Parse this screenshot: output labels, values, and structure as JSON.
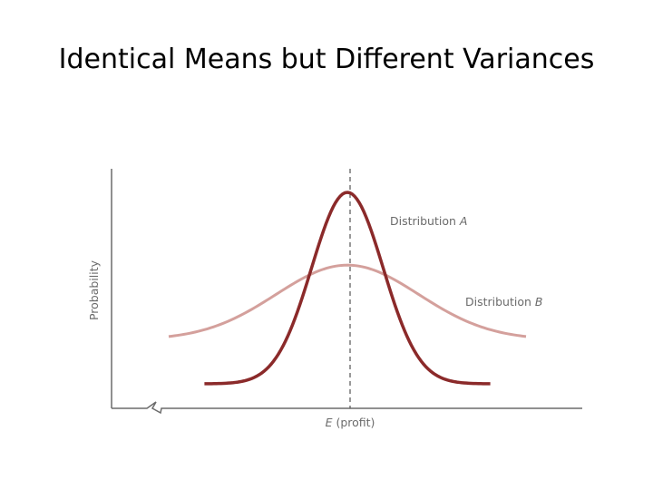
{
  "title": "Identical Means but Different Variances",
  "chart_data": {
    "type": "line",
    "ylabel": "Probability",
    "xlabel": {
      "symbol": "E",
      "rest": " (profit)"
    },
    "mean_line": "dashed",
    "grid": false,
    "axis_break_on_x": true,
    "x_range": [
      -3,
      3
    ],
    "y_range": [
      0,
      1
    ],
    "series": [
      {
        "label_prefix": "Distribution ",
        "label_letter": "A",
        "color": "#8b2a2a",
        "sigma": 0.6,
        "peak": 1.0,
        "baseline": 0.0
      },
      {
        "label_prefix": "Distribution ",
        "label_letter": "B",
        "color": "#d4a09c",
        "sigma": 1.2,
        "peak": 0.62,
        "baseline": 0.23
      }
    ]
  },
  "colors": {
    "axis": "#6b6b6b",
    "series_a": "#8b2a2a",
    "series_b": "#d4a09c"
  }
}
